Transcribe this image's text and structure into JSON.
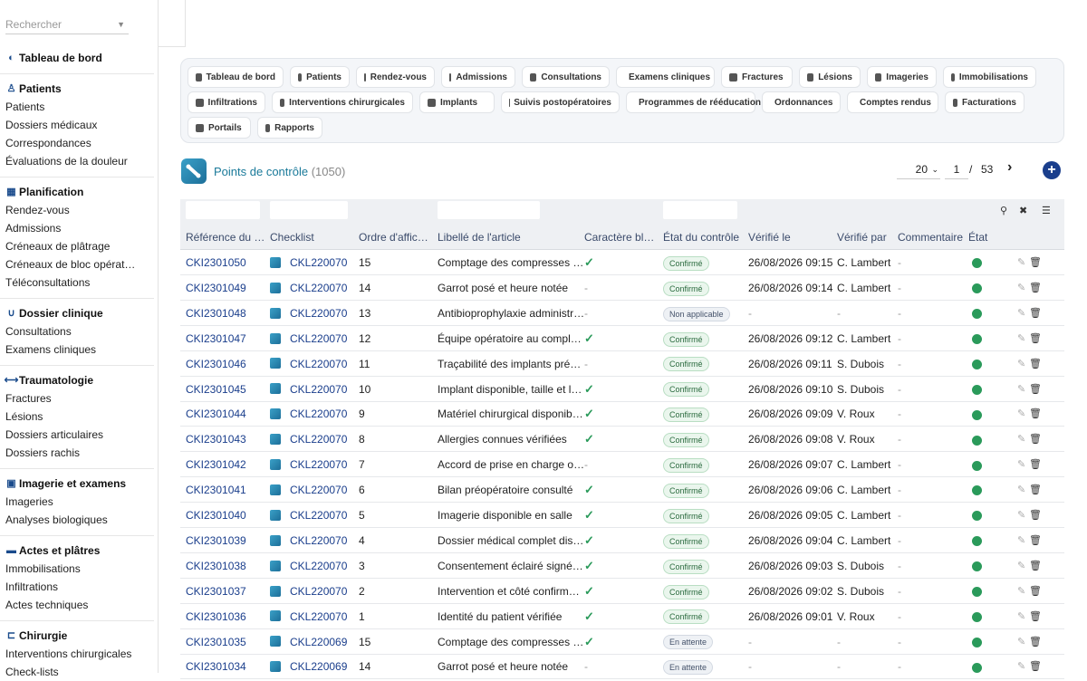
{
  "sidebar": {
    "search_placeholder": "Rechercher",
    "sections": [
      {
        "title": "Tableau de bord",
        "icon": "dashboard-icon",
        "items": []
      },
      {
        "title": "Patients",
        "icon": "patient-icon",
        "items": [
          "Patients",
          "Dossiers médicaux",
          "Correspondances",
          "Évaluations de la douleur"
        ]
      },
      {
        "title": "Planification",
        "icon": "calendar-icon",
        "items": [
          "Rendez-vous",
          "Admissions",
          "Créneaux de plâtrage",
          "Créneaux de bloc opérat…",
          "Téléconsultations"
        ]
      },
      {
        "title": "Dossier clinique",
        "icon": "stethoscope-icon",
        "items": [
          "Consultations",
          "Examens cliniques"
        ]
      },
      {
        "title": "Traumatologie",
        "icon": "bone-icon",
        "items": [
          "Fractures",
          "Lésions",
          "Dossiers articulaires",
          "Dossiers rachis"
        ]
      },
      {
        "title": "Imagerie et examens",
        "icon": "xray-icon",
        "items": [
          "Imageries",
          "Analyses biologiques"
        ]
      },
      {
        "title": "Actes et plâtres",
        "icon": "bandage-icon",
        "items": [
          "Immobilisations",
          "Infiltrations",
          "Actes techniques"
        ]
      },
      {
        "title": "Chirurgie",
        "icon": "surgery-bed-icon",
        "items": [
          "Interventions chirurgicales",
          "Check-lists"
        ]
      }
    ]
  },
  "modules": [
    {
      "label": "Tableau de bord",
      "icon": "dashboard-icon"
    },
    {
      "label": "Patients",
      "icon": "patient-icon"
    },
    {
      "label": "Rendez-vous",
      "icon": "calendar-icon"
    },
    {
      "label": "Admissions",
      "icon": "clipboard-icon"
    },
    {
      "label": "Consultations",
      "icon": "stethoscope-icon"
    },
    {
      "label": "Examens cliniques",
      "icon": "exam-icon"
    },
    {
      "label": "Fractures",
      "icon": "bone-icon"
    },
    {
      "label": "Lésions",
      "icon": "bandage-icon"
    },
    {
      "label": "Imageries",
      "icon": "xray-icon"
    },
    {
      "label": "Immobilisations",
      "icon": "cast-icon"
    },
    {
      "label": "Infiltrations",
      "icon": "syringe-icon"
    },
    {
      "label": "Interventions chirurgicales",
      "icon": "surgery-bed-icon"
    },
    {
      "label": "Implants",
      "icon": "implant-icon"
    },
    {
      "label": "Suivis postopératoires",
      "icon": "heart-icon"
    },
    {
      "label": "Programmes de rééducation",
      "icon": "dumbbell-icon"
    },
    {
      "label": "Ordonnances",
      "icon": "prescription-icon"
    },
    {
      "label": "Comptes rendus",
      "icon": "document-icon"
    },
    {
      "label": "Facturations",
      "icon": "invoice-icon"
    },
    {
      "label": "Portails",
      "icon": "users-icon"
    },
    {
      "label": "Rapports",
      "icon": "chart-icon"
    }
  ],
  "page": {
    "title": "Points de contrôle",
    "count": "(1050)",
    "page_size": "20",
    "current_page": "1",
    "separator": "/",
    "total_pages": "53"
  },
  "columns": [
    "Référence du …",
    "Checklist",
    "Ordre d'affic…",
    "Libellé de l'article",
    "Caractère bl…",
    "État du contrôle",
    "Vérifié le",
    "Vérifié par",
    "Commentaire",
    "État"
  ],
  "rows": [
    {
      "ref": "CKI2301050",
      "checklist": "CKL220070",
      "ordre": "15",
      "libelle": "Comptage des compresses …",
      "bloquant": "check",
      "etat_controle": "Confirmé",
      "verifie_le": "26/08/2026 09:15",
      "verifie_par": "C. Lambert",
      "commentaire": "-"
    },
    {
      "ref": "CKI2301049",
      "checklist": "CKL220070",
      "ordre": "14",
      "libelle": "Garrot posé et heure notée",
      "bloquant": "-",
      "etat_controle": "Confirmé",
      "verifie_le": "26/08/2026 09:14",
      "verifie_par": "C. Lambert",
      "commentaire": "-"
    },
    {
      "ref": "CKI2301048",
      "checklist": "CKL220070",
      "ordre": "13",
      "libelle": "Antibioprophylaxie administr…",
      "bloquant": "-",
      "etat_controle": "Non applicable",
      "verifie_le": "-",
      "verifie_par": "-",
      "commentaire": "-"
    },
    {
      "ref": "CKI2301047",
      "checklist": "CKL220070",
      "ordre": "12",
      "libelle": "Équipe opératoire au compl…",
      "bloquant": "check",
      "etat_controle": "Confirmé",
      "verifie_le": "26/08/2026 09:12",
      "verifie_par": "C. Lambert",
      "commentaire": "-"
    },
    {
      "ref": "CKI2301046",
      "checklist": "CKL220070",
      "ordre": "11",
      "libelle": "Traçabilité des implants pré…",
      "bloquant": "-",
      "etat_controle": "Confirmé",
      "verifie_le": "26/08/2026 09:11",
      "verifie_par": "S. Dubois",
      "commentaire": "-"
    },
    {
      "ref": "CKI2301045",
      "checklist": "CKL220070",
      "ordre": "10",
      "libelle": "Implant disponible, taille et l…",
      "bloquant": "check",
      "etat_controle": "Confirmé",
      "verifie_le": "26/08/2026 09:10",
      "verifie_par": "S. Dubois",
      "commentaire": "-"
    },
    {
      "ref": "CKI2301044",
      "checklist": "CKL220070",
      "ordre": "9",
      "libelle": "Matériel chirurgical disponib…",
      "bloquant": "check",
      "etat_controle": "Confirmé",
      "verifie_le": "26/08/2026 09:09",
      "verifie_par": "V. Roux",
      "commentaire": "-"
    },
    {
      "ref": "CKI2301043",
      "checklist": "CKL220070",
      "ordre": "8",
      "libelle": "Allergies connues vérifiées",
      "bloquant": "check",
      "etat_controle": "Confirmé",
      "verifie_le": "26/08/2026 09:08",
      "verifie_par": "V. Roux",
      "commentaire": "-"
    },
    {
      "ref": "CKI2301042",
      "checklist": "CKL220070",
      "ordre": "7",
      "libelle": "Accord de prise en charge o…",
      "bloquant": "-",
      "etat_controle": "Confirmé",
      "verifie_le": "26/08/2026 09:07",
      "verifie_par": "C. Lambert",
      "commentaire": "-"
    },
    {
      "ref": "CKI2301041",
      "checklist": "CKL220070",
      "ordre": "6",
      "libelle": "Bilan préopératoire consulté",
      "bloquant": "check",
      "etat_controle": "Confirmé",
      "verifie_le": "26/08/2026 09:06",
      "verifie_par": "C. Lambert",
      "commentaire": "-"
    },
    {
      "ref": "CKI2301040",
      "checklist": "CKL220070",
      "ordre": "5",
      "libelle": "Imagerie disponible en salle",
      "bloquant": "check",
      "etat_controle": "Confirmé",
      "verifie_le": "26/08/2026 09:05",
      "verifie_par": "C. Lambert",
      "commentaire": "-"
    },
    {
      "ref": "CKI2301039",
      "checklist": "CKL220070",
      "ordre": "4",
      "libelle": "Dossier médical complet dis…",
      "bloquant": "check",
      "etat_controle": "Confirmé",
      "verifie_le": "26/08/2026 09:04",
      "verifie_par": "C. Lambert",
      "commentaire": "-"
    },
    {
      "ref": "CKI2301038",
      "checklist": "CKL220070",
      "ordre": "3",
      "libelle": "Consentement éclairé signé…",
      "bloquant": "check",
      "etat_controle": "Confirmé",
      "verifie_le": "26/08/2026 09:03",
      "verifie_par": "S. Dubois",
      "commentaire": "-"
    },
    {
      "ref": "CKI2301037",
      "checklist": "CKL220070",
      "ordre": "2",
      "libelle": "Intervention et côté confirm…",
      "bloquant": "check",
      "etat_controle": "Confirmé",
      "verifie_le": "26/08/2026 09:02",
      "verifie_par": "S. Dubois",
      "commentaire": "-"
    },
    {
      "ref": "CKI2301036",
      "checklist": "CKL220070",
      "ordre": "1",
      "libelle": "Identité du patient vérifiée",
      "bloquant": "check",
      "etat_controle": "Confirmé",
      "verifie_le": "26/08/2026 09:01",
      "verifie_par": "V. Roux",
      "commentaire": "-"
    },
    {
      "ref": "CKI2301035",
      "checklist": "CKL220069",
      "ordre": "15",
      "libelle": "Comptage des compresses …",
      "bloquant": "check",
      "etat_controle": "En attente",
      "verifie_le": "-",
      "verifie_par": "-",
      "commentaire": "-"
    },
    {
      "ref": "CKI2301034",
      "checklist": "CKL220069",
      "ordre": "14",
      "libelle": "Garrot posé et heure notée",
      "bloquant": "-",
      "etat_controle": "En attente",
      "verifie_le": "-",
      "verifie_par": "-",
      "commentaire": "-"
    }
  ],
  "colors": {
    "accent": "#1a3e8c",
    "title": "#1a7a9a",
    "status_dot": "#2a9a5a",
    "check": "#2a9a5a"
  }
}
